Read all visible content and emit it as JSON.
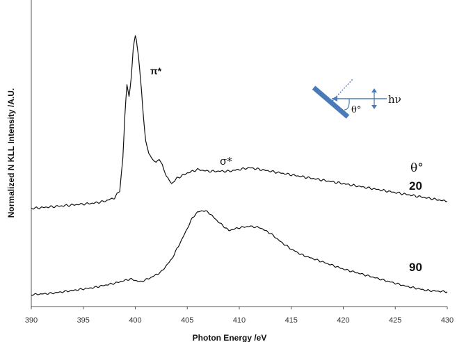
{
  "chart_data": {
    "type": "line",
    "xlabel": "Photon Energy /eV",
    "ylabel": "Normalized N KLL Intensity /A.U.",
    "xlim": [
      390,
      430
    ],
    "x_ticks": [
      "390",
      "395",
      "400",
      "405",
      "410",
      "415",
      "420",
      "425",
      "430"
    ],
    "y_ticks_shown": false,
    "legend_title": "θ°",
    "annotations": {
      "pi_star": "π*",
      "sigma_star": "σ*",
      "h_nu": "hν",
      "theta": "θ°"
    },
    "series": [
      {
        "name": "20",
        "x": [
          390,
          392,
          394,
          396,
          397,
          398,
          398.5,
          398.8,
          399.0,
          399.2,
          399.4,
          399.6,
          399.8,
          400.0,
          400.2,
          400.4,
          400.6,
          400.8,
          401.0,
          401.3,
          401.7,
          402.0,
          402.3,
          402.6,
          403.0,
          403.5,
          404.0,
          405.0,
          406.0,
          407.0,
          408.0,
          409.0,
          410.0,
          411.0,
          412.0,
          413.0,
          414.0,
          415.0,
          416.0,
          418.0,
          420.0,
          422.0,
          424.0,
          426.0,
          428.0,
          430.0
        ],
        "y": [
          0.02,
          0.03,
          0.04,
          0.05,
          0.06,
          0.08,
          0.12,
          0.3,
          0.55,
          0.72,
          0.65,
          0.75,
          0.92,
          1.0,
          0.93,
          0.82,
          0.68,
          0.52,
          0.4,
          0.33,
          0.3,
          0.28,
          0.29,
          0.27,
          0.2,
          0.16,
          0.19,
          0.22,
          0.24,
          0.23,
          0.23,
          0.23,
          0.24,
          0.25,
          0.24,
          0.23,
          0.22,
          0.21,
          0.2,
          0.18,
          0.16,
          0.14,
          0.12,
          0.1,
          0.08,
          0.06
        ]
      },
      {
        "name": "90",
        "x": [
          390,
          392,
          394,
          396,
          398,
          399.5,
          400.5,
          401.5,
          402.5,
          403.5,
          404.5,
          405.5,
          406.0,
          406.5,
          407.0,
          408.0,
          409.0,
          410.0,
          411.0,
          412.0,
          413.0,
          414.0,
          415.0,
          416.0,
          418.0,
          420.0,
          422.0,
          424.0,
          426.0,
          428.0,
          430.0
        ],
        "y": [
          0.02,
          0.03,
          0.05,
          0.07,
          0.1,
          0.13,
          0.11,
          0.14,
          0.18,
          0.27,
          0.41,
          0.56,
          0.6,
          0.61,
          0.6,
          0.53,
          0.47,
          0.49,
          0.5,
          0.49,
          0.45,
          0.39,
          0.34,
          0.3,
          0.25,
          0.2,
          0.16,
          0.12,
          0.08,
          0.05,
          0.04
        ]
      }
    ]
  }
}
